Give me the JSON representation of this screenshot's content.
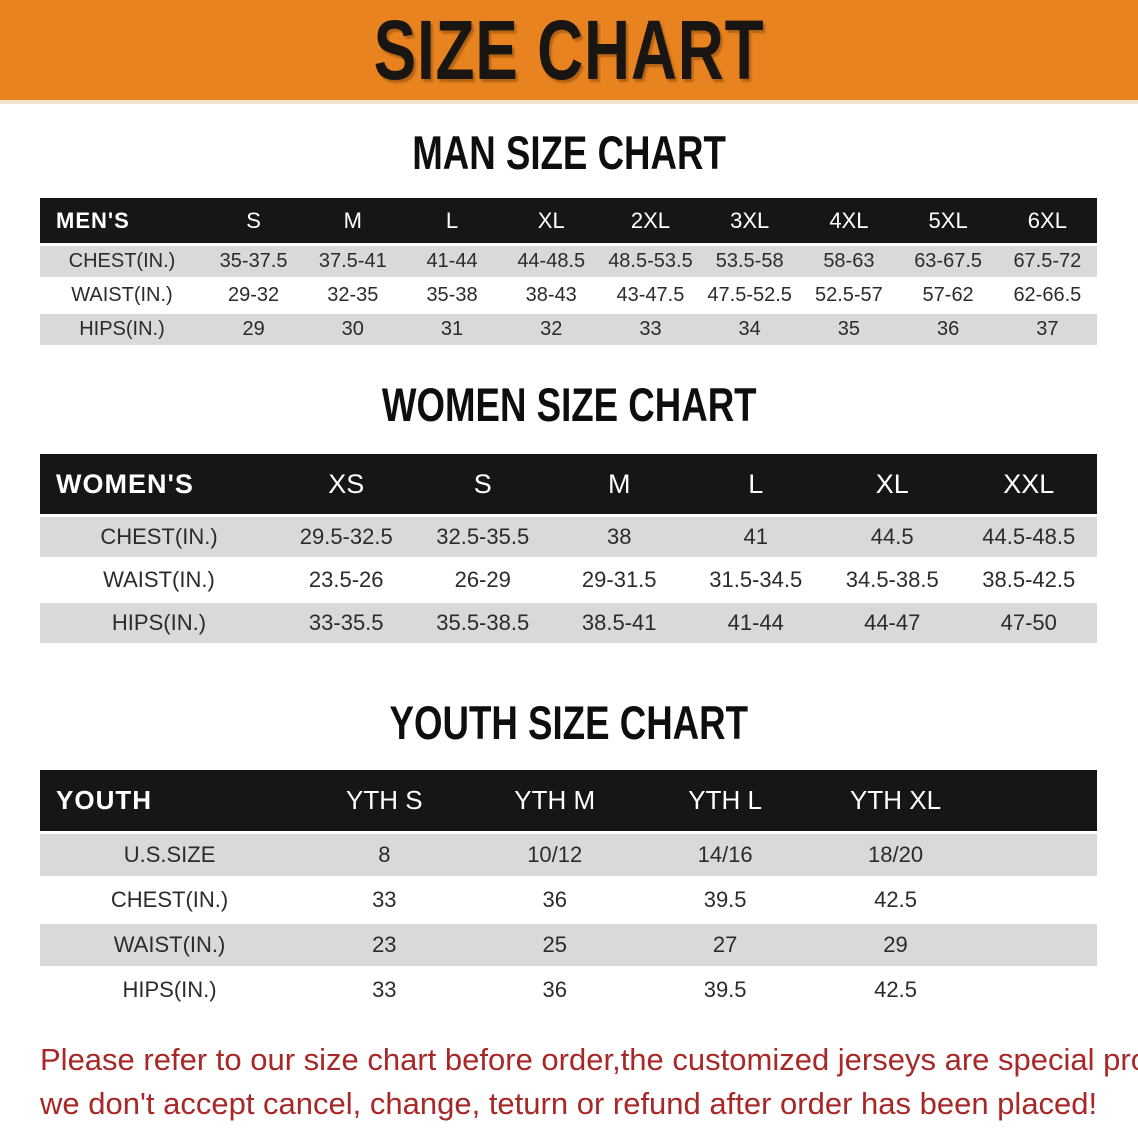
{
  "banner": {
    "title": "SIZE CHART",
    "bg_color": "#E8831F",
    "text_color": "#181512"
  },
  "men_section": {
    "heading": "MAN SIZE CHART",
    "table": {
      "header": [
        "MEN'S",
        "S",
        "M",
        "L",
        "XL",
        "2XL",
        "3XL",
        "4XL",
        "5XL",
        "6XL"
      ],
      "rows": [
        {
          "label": "CHEST(IN.)",
          "values": [
            "35-37.5",
            "37.5-41",
            "41-44",
            "44-48.5",
            "48.5-53.5",
            "53.5-58",
            "58-63",
            "63-67.5",
            "67.5-72"
          ]
        },
        {
          "label": "WAIST(IN.)",
          "values": [
            "29-32",
            "32-35",
            "35-38",
            "38-43",
            "43-47.5",
            "47.5-52.5",
            "52.5-57",
            "57-62",
            "62-66.5"
          ]
        },
        {
          "label": "HIPS(IN.)",
          "values": [
            "29",
            "30",
            "31",
            "32",
            "33",
            "34",
            "35",
            "36",
            "37"
          ]
        }
      ]
    }
  },
  "women_section": {
    "heading": "WOMEN SIZE CHART",
    "table": {
      "header": [
        "WOMEN'S",
        "XS",
        "S",
        "M",
        "L",
        "XL",
        "XXL"
      ],
      "rows": [
        {
          "label": "CHEST(IN.)",
          "values": [
            "29.5-32.5",
            "32.5-35.5",
            "38",
            "41",
            "44.5",
            "44.5-48.5"
          ]
        },
        {
          "label": "WAIST(IN.)",
          "values": [
            "23.5-26",
            "26-29",
            "29-31.5",
            "31.5-34.5",
            "34.5-38.5",
            "38.5-42.5"
          ]
        },
        {
          "label": "HIPS(IN.)",
          "values": [
            "33-35.5",
            "35.5-38.5",
            "38.5-41",
            "41-44",
            "44-47",
            "47-50"
          ]
        }
      ]
    }
  },
  "youth_section": {
    "heading": "YOUTH SIZE CHART",
    "table": {
      "header": [
        "YOUTH",
        "YTH S",
        "YTH M",
        "YTH L",
        "YTH XL"
      ],
      "rows": [
        {
          "label": "U.S.SIZE",
          "values": [
            "8",
            "10/12",
            "14/16",
            "18/20"
          ]
        },
        {
          "label": "CHEST(IN.)",
          "values": [
            "33",
            "36",
            "39.5",
            "42.5"
          ]
        },
        {
          "label": "WAIST(IN.)",
          "values": [
            "23",
            "25",
            "27",
            "29"
          ]
        },
        {
          "label": "HIPS(IN.)",
          "values": [
            "33",
            "36",
            "39.5",
            "42.5"
          ]
        }
      ]
    }
  },
  "footer": {
    "line1": "Please refer to our size chart before order,the customized jerseys are special products,",
    "line2": "we don't accept cancel, change, teturn or refund after order has been placed!",
    "text_color": "#A82828"
  },
  "colors": {
    "table_header_bar": "#161616",
    "row_shade": "#D9D9D9",
    "row_gap": "#FFFFFF"
  }
}
